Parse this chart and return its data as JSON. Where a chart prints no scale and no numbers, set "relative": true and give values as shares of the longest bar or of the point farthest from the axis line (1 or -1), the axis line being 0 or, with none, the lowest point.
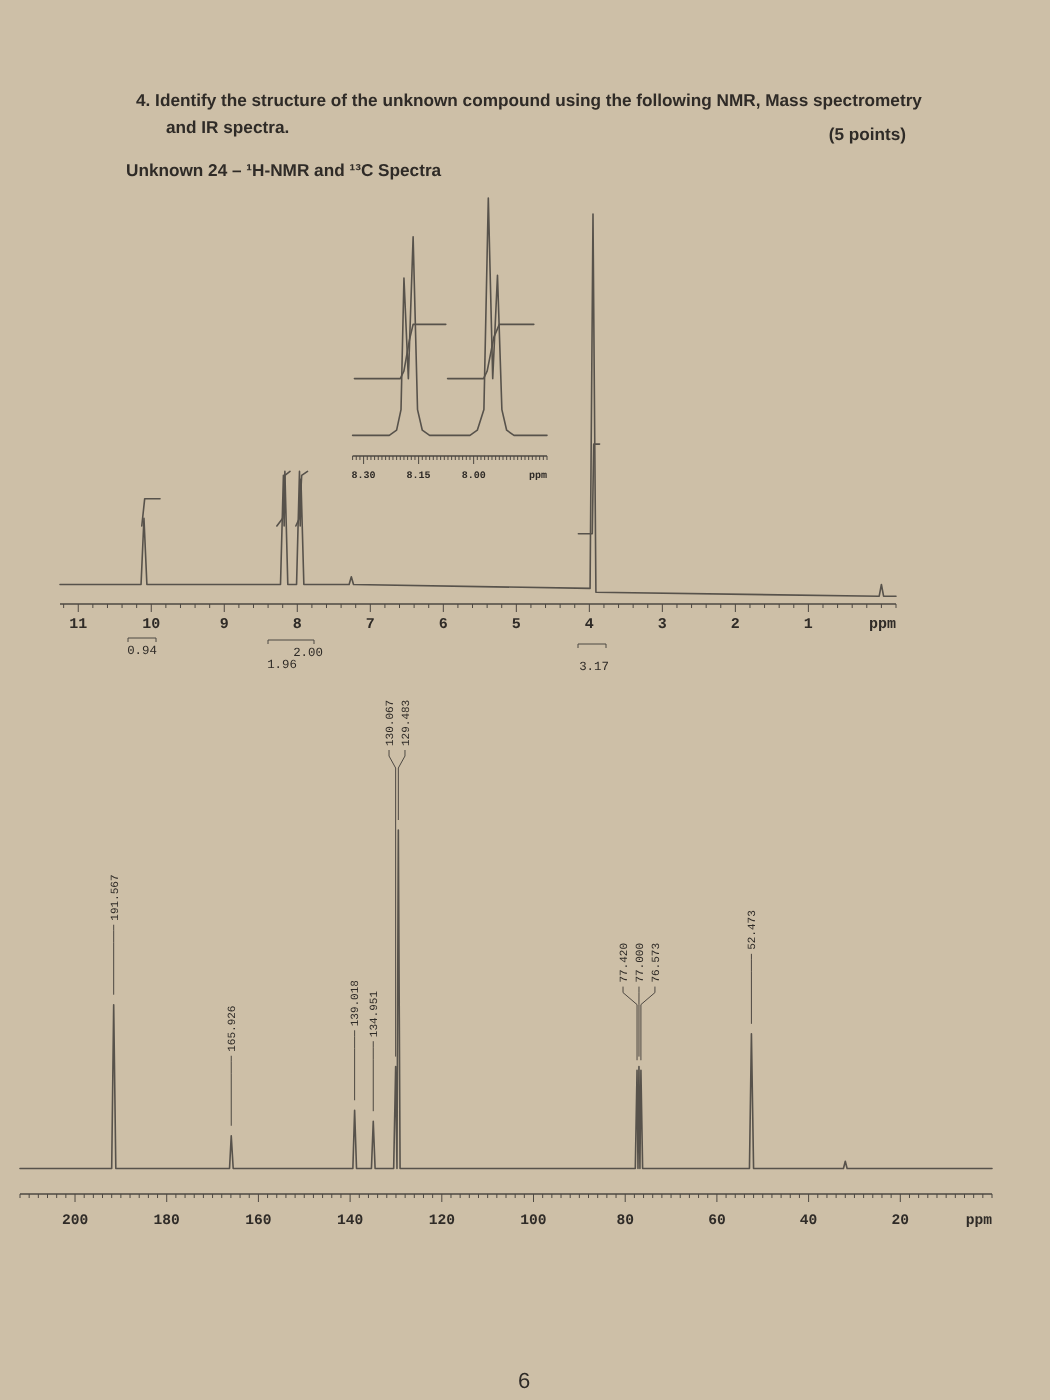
{
  "chart_data": [
    {
      "type": "line",
      "title": "4. Identify the structure of the unknown compound using the following NMR, Mass spectrometry and IR spectra.",
      "subtitle": "Unknown 24 – ¹H-NMR and ¹³C Spectra",
      "relative": true,
      "xlim": [
        11.25,
        -0.2
      ],
      "xlabel": "ppm",
      "xticks": [
        {
          "value": 11.2,
          "label": null
        },
        11,
        {
          "value": 10.8,
          "label": null
        },
        {
          "value": 10.6,
          "label": null
        },
        {
          "value": 10.4,
          "label": null
        },
        {
          "value": 10.2,
          "label": null
        },
        10,
        {
          "value": 9.8,
          "label": null
        },
        {
          "value": 9.6,
          "label": null
        },
        {
          "value": 9.4,
          "label": null
        },
        {
          "value": 9.2,
          "label": null
        },
        9,
        {
          "value": 8.8,
          "label": null
        },
        {
          "value": 8.6,
          "label": null
        },
        {
          "value": 8.4,
          "label": null
        },
        {
          "value": 8.2,
          "label": null
        },
        8,
        {
          "value": 7.8,
          "label": null
        },
        {
          "value": 7.6,
          "label": null
        },
        {
          "value": 7.4,
          "label": null
        },
        {
          "value": 7.2,
          "label": null
        },
        7,
        {
          "value": 6.8,
          "label": null
        },
        {
          "value": 6.6,
          "label": null
        },
        {
          "value": 6.4,
          "label": null
        },
        {
          "value": 6.2,
          "label": null
        },
        6,
        {
          "value": 5.8,
          "label": null
        },
        {
          "value": 5.6,
          "label": null
        },
        {
          "value": 5.4,
          "label": null
        },
        {
          "value": 5.2,
          "label": null
        },
        5,
        {
          "value": 4.8,
          "label": null
        },
        {
          "value": 4.6,
          "label": null
        },
        {
          "value": 4.4,
          "label": null
        },
        {
          "value": 4.2,
          "label": null
        },
        4,
        {
          "value": 3.8,
          "label": null
        },
        {
          "value": 3.6,
          "label": null
        },
        {
          "value": 3.4,
          "label": null
        },
        {
          "value": 3.2,
          "label": null
        },
        3,
        {
          "value": 2.8,
          "label": null
        },
        {
          "value": 2.6,
          "label": null
        },
        {
          "value": 2.4,
          "label": null
        },
        {
          "value": 2.2,
          "label": null
        },
        2,
        {
          "value": 1.8,
          "label": null
        },
        {
          "value": 1.6,
          "label": null
        },
        {
          "value": 1.4,
          "label": null
        },
        {
          "value": 1.2,
          "label": null
        },
        1,
        {
          "value": 0.8,
          "label": null
        },
        {
          "value": 0.6,
          "label": null
        },
        {
          "value": 0.4,
          "label": null
        },
        {
          "value": 0.2,
          "label": null
        },
        {
          "value": 0,
          "label": null
        },
        {
          "value": -0.2,
          "label": null
        }
      ],
      "series": [
        {
          "color": "#57524b",
          "x": [
            11.25,
            10.14,
            10.1,
            10.06,
            8.23,
            8.19,
            8.18,
            8.17,
            8.13,
            8.01,
            7.97,
            7.96,
            7.95,
            7.91,
            7.29,
            7.26,
            7.23,
            3.99,
            3.95,
            3.91,
            0.03,
            0,
            -0.03,
            -0.2
          ],
          "values": [
            0.05,
            0.05,
            0.22,
            0.05,
            0.05,
            0.33,
            0.2,
            0.34,
            0.05,
            0.05,
            0.34,
            0.2,
            0.32,
            0.05,
            0.05,
            0.07,
            0.05,
            0.04,
            1,
            0.03,
            0.02,
            0.05,
            0.02,
            0.02
          ]
        },
        {
          "color": "#57524b",
          "x": [
            10.13,
            10.09,
            9.88,
            9.5,
            8.28,
            8.2,
            8.17,
            8.1,
            8.06,
            8.02,
            7.97,
            7.94,
            7.86,
            6,
            4.15,
            3.96,
            3.94,
            3.86
          ],
          "values": [
            0.2,
            0.27,
            0.27,
            null,
            0.2,
            0.22,
            0.33,
            0.34,
            null,
            0.2,
            0.22,
            0.33,
            0.34,
            null,
            0.18,
            0.18,
            0.41,
            0.41
          ]
        }
      ],
      "annotations": [
        "(5 points)",
        "0.94",
        "1.96",
        "2.00",
        "3.17"
      ]
    },
    {
      "type": "line",
      "relative": true,
      "xlim": [
        8.33,
        7.8
      ],
      "xlabel": "ppm",
      "xticks": [
        {
          "value": 8.33,
          "label": null
        },
        {
          "value": 8.32,
          "label": null
        },
        {
          "value": 8.31,
          "label": null
        },
        {
          "value": 8.3,
          "label": "8.30"
        },
        {
          "value": 8.29,
          "label": null
        },
        {
          "value": 8.28,
          "label": null
        },
        {
          "value": 8.27,
          "label": null
        },
        {
          "value": 8.26,
          "label": null
        },
        {
          "value": 8.25,
          "label": null
        },
        {
          "value": 8.24,
          "label": null
        },
        {
          "value": 8.23,
          "label": null
        },
        {
          "value": 8.22,
          "label": null
        },
        {
          "value": 8.21,
          "label": null
        },
        {
          "value": 8.2,
          "label": null
        },
        {
          "value": 8.19,
          "label": null
        },
        {
          "value": 8.18,
          "label": null
        },
        {
          "value": 8.17,
          "label": null
        },
        {
          "value": 8.16,
          "label": null
        },
        {
          "value": 8.15,
          "label": "8.15"
        },
        {
          "value": 8.14,
          "label": null
        },
        {
          "value": 8.13,
          "label": null
        },
        {
          "value": 8.12,
          "label": null
        },
        {
          "value": 8.11,
          "label": null
        },
        {
          "value": 8.1,
          "label": null
        },
        {
          "value": 8.09,
          "label": null
        },
        {
          "value": 8.08,
          "label": null
        },
        {
          "value": 8.07,
          "label": null
        },
        {
          "value": 8.06,
          "label": null
        },
        {
          "value": 8.05,
          "label": null
        },
        {
          "value": 8.04,
          "label": null
        },
        {
          "value": 8.03,
          "label": null
        },
        {
          "value": 8.02,
          "label": null
        },
        {
          "value": 8.01,
          "label": null
        },
        {
          "value": 8,
          "label": "8.00"
        },
        {
          "value": 7.99,
          "label": null
        },
        {
          "value": 7.98,
          "label": null
        },
        {
          "value": 7.97,
          "label": null
        },
        {
          "value": 7.96,
          "label": null
        },
        {
          "value": 7.95,
          "label": null
        },
        {
          "value": 7.94,
          "label": null
        },
        {
          "value": 7.93,
          "label": null
        },
        {
          "value": 7.92,
          "label": null
        },
        {
          "value": 7.91,
          "label": null
        },
        {
          "value": 7.9,
          "label": null
        },
        {
          "value": 7.89,
          "label": null
        },
        {
          "value": 7.88,
          "label": null
        },
        {
          "value": 7.87,
          "label": null
        },
        {
          "value": 7.86,
          "label": null
        },
        {
          "value": 7.85,
          "label": null
        },
        {
          "value": 7.84,
          "label": null
        },
        {
          "value": 7.83,
          "label": null
        },
        {
          "value": 7.82,
          "label": null
        },
        {
          "value": 7.81,
          "label": null
        },
        {
          "value": 7.8,
          "label": null
        }
      ],
      "series": [
        {
          "color": "#57524b",
          "x": [
            8.33,
            8.23,
            8.21,
            8.198,
            8.19,
            8.178,
            8.165,
            8.153,
            8.14,
            8.12,
            8.01,
            7.99,
            7.972,
            7.96,
            7.948,
            7.935,
            7.923,
            7.91,
            7.89,
            7.8
          ],
          "values": [
            0.08,
            0.08,
            0.1,
            0.18,
            0.69,
            0.3,
            0.85,
            0.18,
            0.1,
            0.08,
            0.08,
            0.1,
            0.18,
            1,
            0.3,
            0.7,
            0.18,
            0.1,
            0.08,
            0.08
          ]
        },
        {
          "color": "#57524b",
          "x": [
            8.325,
            8.2,
            8.19,
            8.175,
            8.165,
            8.076,
            8.074,
            8.071,
            7.973,
            7.963,
            7.945,
            7.93,
            7.836
          ],
          "values": [
            0.3,
            0.3,
            0.33,
            0.45,
            0.51,
            0.51,
            null,
            0.3,
            0.3,
            0.33,
            0.46,
            0.51,
            0.51
          ]
        }
      ]
    },
    {
      "type": "line",
      "relative": true,
      "xlim": [
        212,
        0
      ],
      "xlabel": "ppm",
      "xticks": [
        {
          "value": 212,
          "label": null
        },
        {
          "value": 210,
          "label": null
        },
        {
          "value": 208,
          "label": null
        },
        {
          "value": 206,
          "label": null
        },
        {
          "value": 204,
          "label": null
        },
        {
          "value": 202,
          "label": null
        },
        200,
        {
          "value": 198,
          "label": null
        },
        {
          "value": 196,
          "label": null
        },
        {
          "value": 194,
          "label": null
        },
        {
          "value": 192,
          "label": null
        },
        {
          "value": 190,
          "label": null
        },
        {
          "value": 188,
          "label": null
        },
        {
          "value": 186,
          "label": null
        },
        {
          "value": 184,
          "label": null
        },
        {
          "value": 182,
          "label": null
        },
        180,
        {
          "value": 178,
          "label": null
        },
        {
          "value": 176,
          "label": null
        },
        {
          "value": 174,
          "label": null
        },
        {
          "value": 172,
          "label": null
        },
        {
          "value": 170,
          "label": null
        },
        {
          "value": 168,
          "label": null
        },
        {
          "value": 166,
          "label": null
        },
        {
          "value": 164,
          "label": null
        },
        {
          "value": 162,
          "label": null
        },
        160,
        {
          "value": 158,
          "label": null
        },
        {
          "value": 156,
          "label": null
        },
        {
          "value": 154,
          "label": null
        },
        {
          "value": 152,
          "label": null
        },
        {
          "value": 150,
          "label": null
        },
        {
          "value": 148,
          "label": null
        },
        {
          "value": 146,
          "label": null
        },
        {
          "value": 144,
          "label": null
        },
        {
          "value": 142,
          "label": null
        },
        140,
        {
          "value": 138,
          "label": null
        },
        {
          "value": 136,
          "label": null
        },
        {
          "value": 134,
          "label": null
        },
        {
          "value": 132,
          "label": null
        },
        {
          "value": 130,
          "label": null
        },
        {
          "value": 128,
          "label": null
        },
        {
          "value": 126,
          "label": null
        },
        {
          "value": 124,
          "label": null
        },
        {
          "value": 122,
          "label": null
        },
        120,
        {
          "value": 118,
          "label": null
        },
        {
          "value": 116,
          "label": null
        },
        {
          "value": 114,
          "label": null
        },
        {
          "value": 112,
          "label": null
        },
        {
          "value": 110,
          "label": null
        },
        {
          "value": 108,
          "label": null
        },
        {
          "value": 106,
          "label": null
        },
        {
          "value": 104,
          "label": null
        },
        {
          "value": 102,
          "label": null
        },
        100,
        {
          "value": 98,
          "label": null
        },
        {
          "value": 96,
          "label": null
        },
        {
          "value": 94,
          "label": null
        },
        {
          "value": 92,
          "label": null
        },
        {
          "value": 90,
          "label": null
        },
        {
          "value": 88,
          "label": null
        },
        {
          "value": 86,
          "label": null
        },
        {
          "value": 84,
          "label": null
        },
        {
          "value": 82,
          "label": null
        },
        80,
        {
          "value": 78,
          "label": null
        },
        {
          "value": 76,
          "label": null
        },
        {
          "value": 74,
          "label": null
        },
        {
          "value": 72,
          "label": null
        },
        {
          "value": 70,
          "label": null
        },
        {
          "value": 68,
          "label": null
        },
        {
          "value": 66,
          "label": null
        },
        {
          "value": 64,
          "label": null
        },
        {
          "value": 62,
          "label": null
        },
        60,
        {
          "value": 58,
          "label": null
        },
        {
          "value": 56,
          "label": null
        },
        {
          "value": 54,
          "label": null
        },
        {
          "value": 52,
          "label": null
        },
        {
          "value": 50,
          "label": null
        },
        {
          "value": 48,
          "label": null
        },
        {
          "value": 46,
          "label": null
        },
        {
          "value": 44,
          "label": null
        },
        {
          "value": 42,
          "label": null
        },
        40,
        {
          "value": 38,
          "label": null
        },
        {
          "value": 36,
          "label": null
        },
        {
          "value": 34,
          "label": null
        },
        {
          "value": 32,
          "label": null
        },
        {
          "value": 30,
          "label": null
        },
        {
          "value": 28,
          "label": null
        },
        {
          "value": 26,
          "label": null
        },
        {
          "value": 24,
          "label": null
        },
        {
          "value": 22,
          "label": null
        },
        20,
        {
          "value": 18,
          "label": null
        },
        {
          "value": 16,
          "label": null
        },
        {
          "value": 14,
          "label": null
        },
        {
          "value": 12,
          "label": null
        },
        {
          "value": 10,
          "label": null
        },
        {
          "value": 8,
          "label": null
        },
        {
          "value": 6,
          "label": null
        },
        {
          "value": 4,
          "label": null
        },
        {
          "value": 2,
          "label": null
        },
        {
          "value": 0,
          "label": null
        }
      ],
      "series": [
        {
          "color": "#57524b",
          "x": [
            212,
            192,
            191.567,
            191.1,
            166.3,
            165.926,
            165.5,
            139.4,
            139.018,
            138.6,
            135.35,
            134.951,
            134.55,
            130.5,
            130.067,
            129.78,
            129.483,
            129.1,
            77.8,
            77.42,
            77.21,
            77,
            76.79,
            76.573,
            76.2,
            52.9,
            52.473,
            52,
            32.4,
            32,
            31.6,
            0
          ],
          "values": [
            0.07,
            0.07,
            0.52,
            0.07,
            0.07,
            0.16,
            0.07,
            0.07,
            0.23,
            0.07,
            0.07,
            0.2,
            0.07,
            0.07,
            0.35,
            0.07,
            1,
            0.07,
            0.07,
            0.34,
            0.07,
            0.35,
            0.07,
            0.34,
            0.07,
            0.07,
            0.44,
            0.07,
            0.07,
            0.09,
            0.07,
            0.07
          ]
        }
      ],
      "annotations": [
        {
          "text": "191.567",
          "x": 191.567,
          "y": 0.52
        },
        {
          "text": "165.926",
          "x": 165.926,
          "y": 0.16
        },
        {
          "text": "139.018",
          "x": 139.018,
          "y": 0.23
        },
        {
          "text": "134.951",
          "x": 134.951,
          "y": 0.2
        },
        {
          "text": "130.067",
          "x": 130.067,
          "y": 0.35
        },
        {
          "text": "129.483",
          "x": 129.483,
          "y": 1
        },
        {
          "text": "77.420",
          "x": 77.42,
          "y": 0.34
        },
        {
          "text": "77.000",
          "x": 77,
          "y": 0.35
        },
        {
          "text": "76.573",
          "x": 76.573,
          "y": 0.34
        },
        {
          "text": "52.473",
          "x": 52.473,
          "y": 0.44
        },
        "6"
      ]
    }
  ]
}
